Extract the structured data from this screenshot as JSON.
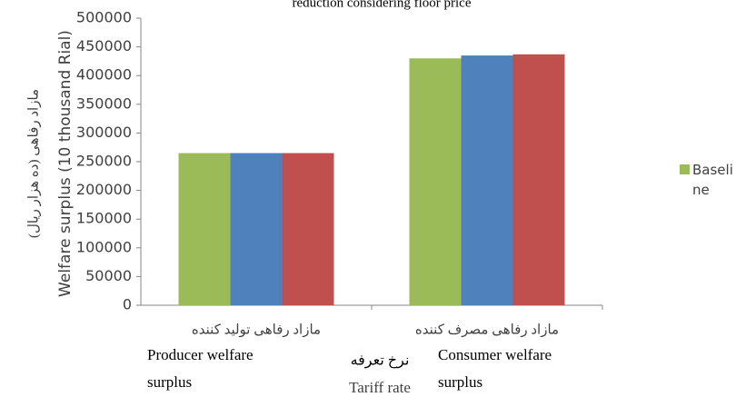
{
  "chart_data": {
    "type": "bar",
    "title": "reduction considering floor price",
    "categories": [
      "مازاد رفاهی تولید کننده",
      "مازاد رفاهی مصرف کننده"
    ],
    "categories_en": [
      [
        "Producer welfare",
        "surplus"
      ],
      [
        "Consumer welfare",
        "surplus"
      ]
    ],
    "x_label": "نرخ تعرفه",
    "x_label_en": "Tariff rate",
    "y_label": "مازاد رفاهی (ده هزار ریال)",
    "y_label_en": "Welfare surplus (10 thousand Rial)",
    "series": [
      {
        "name": "Baseline",
        "color": "#9bbb59",
        "values": [
          265000,
          430000
        ]
      },
      {
        "color": "#4f81bd",
        "values": [
          265000,
          435000
        ]
      },
      {
        "color": "#c0504d",
        "values": [
          265000,
          437000
        ]
      }
    ],
    "ylim": [
      0,
      500000
    ],
    "yticks": [
      0,
      50000,
      100000,
      150000,
      200000,
      250000,
      300000,
      350000,
      400000,
      450000,
      500000
    ],
    "legend": "right"
  }
}
